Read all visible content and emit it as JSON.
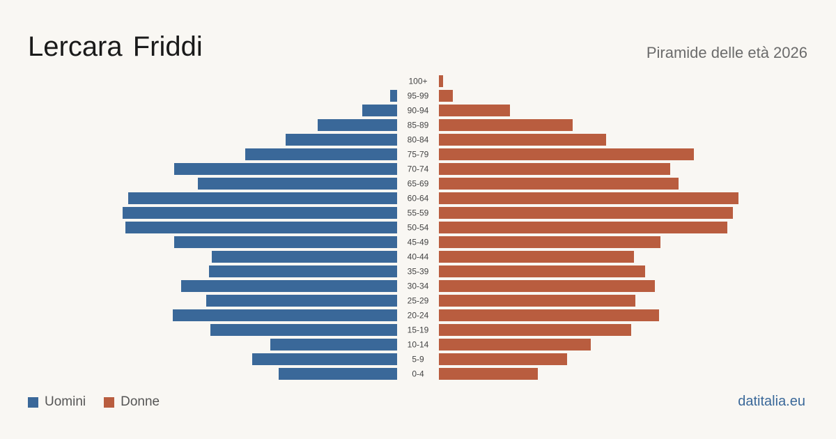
{
  "header": {
    "title": "Lercara Friddi",
    "subtitle": "Piramide delle età 2026"
  },
  "legend": {
    "men_label": "Uomini",
    "women_label": "Donne"
  },
  "footer": {
    "source": "datitalia.eu"
  },
  "colors": {
    "men": "#3a6899",
    "women": "#b95d3f",
    "background": "#f9f7f3"
  },
  "chart_data": {
    "type": "bar",
    "orientation": "horizontal-pyramid",
    "categories": [
      "100+",
      "95-99",
      "90-94",
      "85-89",
      "80-84",
      "75-79",
      "70-74",
      "65-69",
      "60-64",
      "55-59",
      "50-54",
      "45-49",
      "40-44",
      "35-39",
      "30-34",
      "25-29",
      "20-24",
      "15-19",
      "10-14",
      "5-9",
      "0-4"
    ],
    "series": [
      {
        "name": "Uomini",
        "values": [
          0,
          5,
          25,
          57,
          80,
          109,
          160,
          143,
          193,
          197,
          195,
          160,
          133,
          135,
          155,
          137,
          161,
          134,
          91,
          104,
          85
        ]
      },
      {
        "name": "Donne",
        "values": [
          3,
          10,
          51,
          96,
          120,
          183,
          166,
          172,
          215,
          211,
          207,
          159,
          140,
          148,
          155,
          141,
          158,
          138,
          109,
          92,
          71
        ]
      }
    ],
    "legend_position": "bottom-left",
    "grid": false
  }
}
